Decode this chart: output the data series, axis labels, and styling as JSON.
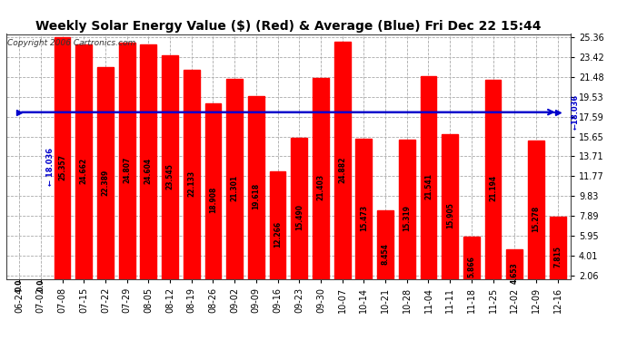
{
  "title": "Weekly Solar Energy Value ($) (Red) & Average (Blue) Fri Dec 22 15:44",
  "copyright": "Copyright 2006 Cartronics.com",
  "categories": [
    "06-24",
    "07-02",
    "07-08",
    "07-15",
    "07-22",
    "07-29",
    "08-05",
    "08-12",
    "08-19",
    "08-26",
    "09-02",
    "09-09",
    "09-16",
    "09-23",
    "09-30",
    "10-07",
    "10-14",
    "10-21",
    "10-28",
    "11-04",
    "11-11",
    "11-18",
    "11-25",
    "12-02",
    "12-09",
    "12-16"
  ],
  "values": [
    0.0,
    0.0,
    25.357,
    24.662,
    22.389,
    24.807,
    24.604,
    23.545,
    22.133,
    18.908,
    21.301,
    19.618,
    12.266,
    15.49,
    21.403,
    24.882,
    15.473,
    8.454,
    15.319,
    21.541,
    15.905,
    5.866,
    21.194,
    4.653,
    15.278,
    7.815
  ],
  "bar_labels": [
    "0.0",
    "0.0",
    "25.357",
    "24.662",
    "22.389",
    "24.807",
    "24.604",
    "23.545",
    "22.133",
    "18.908",
    "21.301",
    "19.618",
    "12.266",
    "15.490",
    "21.403",
    "24.882",
    "15.473",
    "8.454",
    "15.319",
    "21.541",
    "15.905",
    "5.866",
    "21.194",
    "4.653",
    "15.278",
    "7.815"
  ],
  "average": 18.036,
  "bar_color": "#ff0000",
  "avg_line_color": "#0000cc",
  "background_color": "#ffffff",
  "plot_bg_color": "#ffffff",
  "grid_color": "#aaaaaa",
  "title_fontsize": 10,
  "copyright_fontsize": 6.5,
  "bar_label_fontsize": 5.5,
  "tick_fontsize": 7,
  "ytick_labels": [
    "2.06",
    "4.01",
    "5.95",
    "7.89",
    "9.83",
    "11.77",
    "13.71",
    "15.65",
    "17.59",
    "19.53",
    "21.48",
    "23.42",
    "25.36"
  ],
  "ytick_values": [
    2.06,
    4.01,
    5.95,
    7.89,
    9.83,
    11.77,
    13.71,
    15.65,
    17.59,
    19.53,
    21.48,
    23.42,
    25.36
  ],
  "ymin": 2.06,
  "ymax": 25.36,
  "avg_left_label": "← 18.036",
  "avg_right_label": "18.036"
}
